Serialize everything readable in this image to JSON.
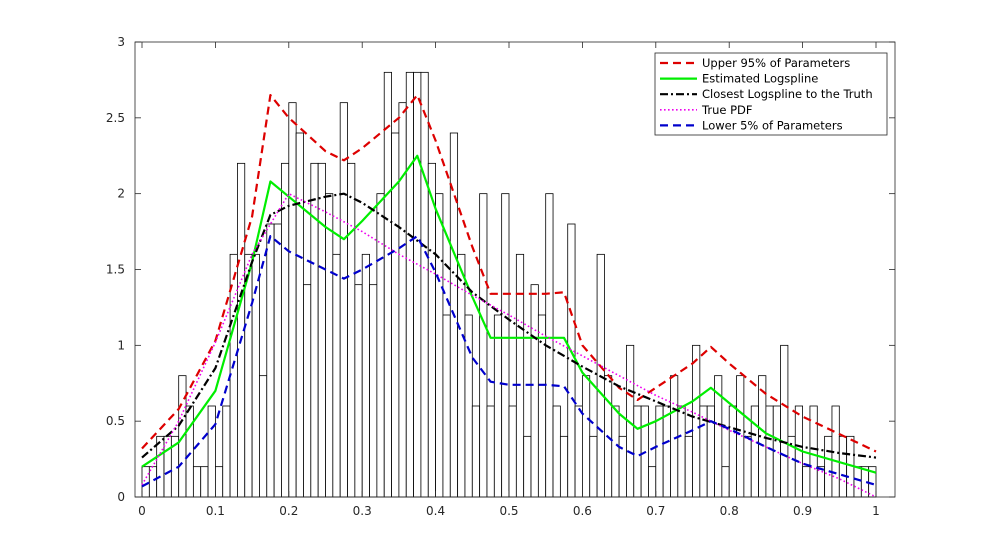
{
  "chart_data": {
    "type": "histogram_with_lines",
    "title": "",
    "xlabel": "",
    "ylabel": "",
    "xlim": [
      0,
      1
    ],
    "ylim": [
      0,
      3
    ],
    "x_ticks": [
      "0",
      "0.1",
      "0.2",
      "0.3",
      "0.4",
      "0.5",
      "0.6",
      "0.7",
      "0.8",
      "0.9",
      "1"
    ],
    "y_ticks": [
      "0",
      "0.5",
      "1",
      "1.5",
      "2",
      "2.5",
      "3"
    ],
    "legend_position": "top-right",
    "histogram": {
      "bin_width": 0.01,
      "bin_starts": [
        0,
        0.01,
        0.02,
        0.03,
        0.04,
        0.05,
        0.06,
        0.07,
        0.08,
        0.09,
        0.1,
        0.11,
        0.12,
        0.13,
        0.14,
        0.15,
        0.16,
        0.17,
        0.18,
        0.19,
        0.2,
        0.21,
        0.22,
        0.23,
        0.24,
        0.25,
        0.26,
        0.27,
        0.28,
        0.29,
        0.3,
        0.31,
        0.32,
        0.33,
        0.34,
        0.35,
        0.36,
        0.37,
        0.38,
        0.39,
        0.4,
        0.41,
        0.42,
        0.43,
        0.44,
        0.45,
        0.46,
        0.47,
        0.48,
        0.49,
        0.5,
        0.51,
        0.52,
        0.53,
        0.54,
        0.55,
        0.56,
        0.57,
        0.58,
        0.59,
        0.6,
        0.61,
        0.62,
        0.63,
        0.64,
        0.65,
        0.66,
        0.67,
        0.68,
        0.69,
        0.7,
        0.71,
        0.72,
        0.73,
        0.74,
        0.75,
        0.76,
        0.77,
        0.78,
        0.79,
        0.8,
        0.81,
        0.82,
        0.83,
        0.84,
        0.85,
        0.86,
        0.87,
        0.88,
        0.89,
        0.9,
        0.91,
        0.92,
        0.93,
        0.94,
        0.95,
        0.96,
        0.97,
        0.98,
        0.99
      ],
      "counts": [
        0.2,
        0.2,
        0.4,
        0.4,
        0.4,
        0.8,
        0.6,
        0.2,
        0.2,
        0.6,
        0.2,
        0.6,
        1.6,
        2.2,
        1.6,
        1.6,
        0.8,
        1.8,
        1.8,
        2.2,
        2.6,
        2.4,
        1.4,
        2.2,
        2.2,
        2.0,
        1.6,
        2.6,
        2.2,
        1.4,
        1.6,
        1.4,
        2.0,
        2.8,
        2.4,
        2.6,
        2.8,
        2.8,
        2.8,
        2.2,
        2.0,
        1.2,
        2.4,
        1.6,
        1.2,
        0.6,
        2.0,
        0.6,
        1.2,
        2.0,
        0.6,
        1.6,
        0.4,
        1.4,
        1.2,
        2.0,
        0.6,
        0.4,
        1.8,
        0.6,
        0.8,
        0.4,
        1.6,
        0.8,
        0.6,
        0.4,
        1.0,
        0.6,
        0.6,
        0.2,
        0.6,
        0.6,
        0.8,
        0.6,
        0.4,
        1.0,
        0.6,
        0.6,
        0.8,
        0.2,
        0.6,
        0.8,
        0.4,
        0.6,
        0.8,
        0.6,
        0.6,
        1.0,
        0.4,
        0.6,
        0.2,
        0.6,
        0.2,
        0.4,
        0.6,
        0.4,
        0.4,
        0.2,
        0.2,
        0.2
      ]
    },
    "series": [
      {
        "name": "Upper 95% of Parameters",
        "color": "#dd0000",
        "style": "dashed",
        "x": [
          0,
          0.05,
          0.1,
          0.15,
          0.175,
          0.2,
          0.25,
          0.275,
          0.3,
          0.35,
          0.375,
          0.4,
          0.45,
          0.475,
          0.5,
          0.55,
          0.575,
          0.6,
          0.65,
          0.675,
          0.7,
          0.75,
          0.775,
          0.8,
          0.85,
          0.9,
          1.0
        ],
        "y": [
          0.32,
          0.58,
          1.03,
          1.85,
          2.65,
          2.5,
          2.28,
          2.22,
          2.3,
          2.5,
          2.65,
          2.35,
          1.65,
          1.34,
          1.34,
          1.34,
          1.35,
          1.0,
          0.72,
          0.64,
          0.72,
          0.88,
          0.99,
          0.88,
          0.68,
          0.53,
          0.3
        ]
      },
      {
        "name": "Estimated Logspline",
        "color": "#00ee00",
        "style": "solid",
        "x": [
          0,
          0.05,
          0.1,
          0.15,
          0.175,
          0.2,
          0.25,
          0.275,
          0.3,
          0.35,
          0.375,
          0.4,
          0.45,
          0.475,
          0.5,
          0.55,
          0.575,
          0.6,
          0.65,
          0.675,
          0.7,
          0.75,
          0.775,
          0.8,
          0.85,
          0.9,
          1.0
        ],
        "y": [
          0.2,
          0.36,
          0.7,
          1.55,
          2.08,
          1.98,
          1.78,
          1.7,
          1.82,
          2.08,
          2.25,
          1.9,
          1.32,
          1.05,
          1.05,
          1.05,
          1.05,
          0.82,
          0.55,
          0.45,
          0.5,
          0.63,
          0.72,
          0.62,
          0.42,
          0.3,
          0.16
        ]
      },
      {
        "name": "Closest Logspline to the Truth",
        "color": "#000000",
        "style": "dashdot",
        "x": [
          0,
          0.05,
          0.1,
          0.15,
          0.175,
          0.2,
          0.25,
          0.275,
          0.3,
          0.35,
          0.4,
          0.45,
          0.5,
          0.55,
          0.6,
          0.65,
          0.7,
          0.75,
          0.8,
          0.85,
          0.9,
          0.95,
          1.0
        ],
        "y": [
          0.26,
          0.47,
          0.85,
          1.55,
          1.86,
          1.92,
          1.98,
          2.0,
          1.94,
          1.78,
          1.6,
          1.35,
          1.17,
          1.0,
          0.86,
          0.73,
          0.63,
          0.53,
          0.46,
          0.39,
          0.33,
          0.29,
          0.26
        ]
      },
      {
        "name": "True PDF",
        "color": "#ee00ee",
        "style": "dotted",
        "x": [
          0,
          0.05,
          0.1,
          0.15,
          0.2,
          0.25,
          0.3,
          0.35,
          0.4,
          0.45,
          0.5,
          0.55,
          0.6,
          0.65,
          0.7,
          0.75,
          0.8,
          0.85,
          0.9,
          0.95,
          1.0
        ],
        "y": [
          0.08,
          0.5,
          1.02,
          1.6,
          2.0,
          1.88,
          1.75,
          1.6,
          1.47,
          1.33,
          1.2,
          1.06,
          0.93,
          0.8,
          0.67,
          0.56,
          0.44,
          0.33,
          0.22,
          0.12,
          0.0
        ]
      },
      {
        "name": "Lower 5% of Parameters",
        "color": "#0000cc",
        "style": "dashed",
        "x": [
          0,
          0.05,
          0.1,
          0.15,
          0.175,
          0.2,
          0.25,
          0.275,
          0.3,
          0.35,
          0.375,
          0.4,
          0.45,
          0.475,
          0.5,
          0.55,
          0.575,
          0.6,
          0.65,
          0.675,
          0.7,
          0.75,
          0.775,
          0.8,
          0.85,
          0.9,
          1.0
        ],
        "y": [
          0.07,
          0.2,
          0.48,
          1.28,
          1.72,
          1.62,
          1.5,
          1.44,
          1.5,
          1.64,
          1.72,
          1.48,
          0.92,
          0.76,
          0.74,
          0.74,
          0.73,
          0.55,
          0.33,
          0.27,
          0.33,
          0.44,
          0.5,
          0.45,
          0.33,
          0.22,
          0.08
        ]
      }
    ]
  }
}
